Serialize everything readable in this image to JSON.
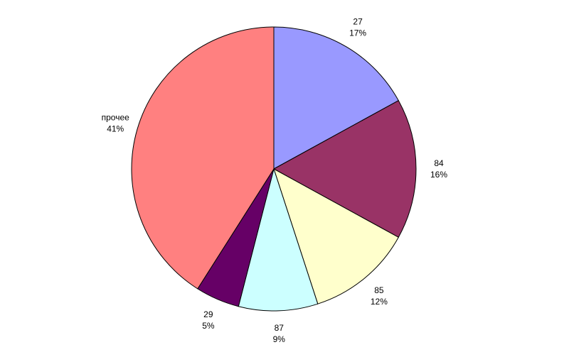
{
  "chart_data": {
    "type": "pie",
    "start": "top",
    "direction": "clockwise",
    "slices": [
      {
        "label": "27",
        "percent": 17,
        "percent_label": "17%",
        "color": "#9999FF"
      },
      {
        "label": "84",
        "percent": 16,
        "percent_label": "16%",
        "color": "#993366"
      },
      {
        "label": "85",
        "percent": 12,
        "percent_label": "12%",
        "color": "#FFFFCC"
      },
      {
        "label": "87",
        "percent": 9,
        "percent_label": "9%",
        "color": "#CCFFFF"
      },
      {
        "label": "29",
        "percent": 5,
        "percent_label": "5%",
        "color": "#660066"
      },
      {
        "label": "прочее",
        "percent": 41,
        "percent_label": "41%",
        "color": "#FF8080"
      }
    ]
  }
}
